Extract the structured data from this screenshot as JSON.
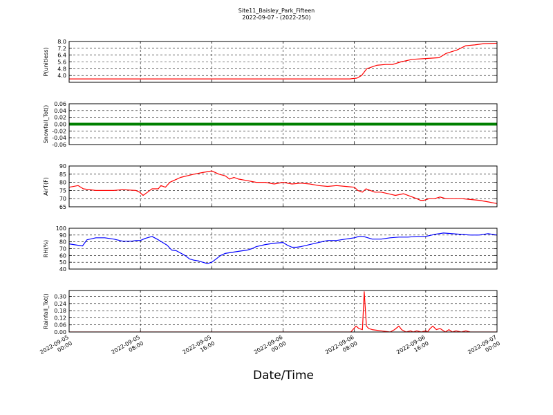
{
  "title_line1": "Site11_Baisley_Park_Fifteen",
  "title_line2": "2022-09-07 - (2022-250)",
  "xlabel": "Date/Time",
  "x_ticks": [
    {
      "t": 0,
      "line1": "2022-09-05",
      "line2": "00:00"
    },
    {
      "t": 8,
      "line1": "2022-09-05",
      "line2": "08:00"
    },
    {
      "t": 16,
      "line1": "2022-09-05",
      "line2": "16:00"
    },
    {
      "t": 24,
      "line1": "2022-09-06",
      "line2": "00:00"
    },
    {
      "t": 32,
      "line1": "2022-09-06",
      "line2": "08:00"
    },
    {
      "t": 40,
      "line1": "2022-09-06",
      "line2": "16:00"
    },
    {
      "t": 48,
      "line1": "2022-09-07",
      "line2": "00:00"
    }
  ],
  "chart_data": [
    {
      "type": "line",
      "ylabel": "P(unitless)",
      "color": "#ff0000",
      "ylim": [
        3.2,
        8.0
      ],
      "yticks": [
        "4.0",
        "4.8",
        "5.6",
        "6.4",
        "7.2",
        "8.0"
      ],
      "x_hours": [
        0,
        8,
        16,
        24,
        31.5,
        32.3,
        32.8,
        33.4,
        34.5,
        35.5,
        36.3,
        37.2,
        38.5,
        40,
        41.5,
        42.3,
        43.5,
        44.5,
        45.5,
        46.5,
        48
      ],
      "values": [
        3.6,
        3.6,
        3.6,
        3.6,
        3.6,
        3.7,
        4.0,
        4.8,
        5.2,
        5.3,
        5.3,
        5.6,
        5.9,
        6.0,
        6.1,
        6.6,
        7.0,
        7.5,
        7.6,
        7.75,
        7.8
      ]
    },
    {
      "type": "line",
      "ylabel": "Snowfall_Tot()",
      "color": "#008000",
      "ylim": [
        -0.06,
        0.06
      ],
      "yticks": [
        "-0.06",
        "-0.04",
        "-0.02",
        "0.00",
        "0.02",
        "0.04",
        "0.06"
      ],
      "x_hours": [
        0,
        48
      ],
      "values": [
        0.0,
        0.0
      ]
    },
    {
      "type": "line",
      "ylabel": "AirT(F)",
      "color": "#ff0000",
      "ylim": [
        65,
        90
      ],
      "yticks": [
        "65",
        "70",
        "75",
        "80",
        "85",
        "90"
      ],
      "x_hours": [
        0,
        1,
        1.6,
        3,
        5,
        6,
        7.5,
        7.9,
        8.3,
        8.8,
        9.3,
        10,
        10.3,
        10.8,
        11.3,
        12.5,
        14,
        15,
        16,
        16.8,
        17.5,
        18,
        18.5,
        19,
        20,
        21,
        22,
        23,
        24,
        25,
        26,
        27,
        28,
        29,
        30,
        31,
        32,
        32.4,
        32.9,
        33.3,
        33.8,
        34.3,
        35,
        35.8,
        36.6,
        37.5,
        38.5,
        39,
        39.4,
        39.8,
        40.4,
        41,
        41.6,
        42.3,
        43,
        44,
        45,
        46,
        47,
        48
      ],
      "values": [
        77,
        78,
        76,
        75,
        75,
        75.5,
        75,
        74,
        72,
        74,
        76,
        76,
        78,
        77,
        80,
        83,
        85,
        86,
        87,
        85,
        84,
        82,
        83,
        82,
        81,
        80,
        80,
        79,
        80,
        79,
        79.5,
        79,
        78,
        77.5,
        78,
        77.5,
        77,
        75,
        74,
        76,
        75,
        74,
        74,
        73,
        72,
        73,
        71,
        70,
        69,
        69,
        70,
        70,
        71,
        70,
        70,
        70,
        69.5,
        69,
        68,
        67
      ]
    },
    {
      "type": "line",
      "ylabel": "RH(%)",
      "color": "#0000ff",
      "ylim": [
        40,
        100
      ],
      "yticks": [
        "40",
        "50",
        "60",
        "70",
        "80",
        "90",
        "100"
      ],
      "x_hours": [
        0,
        1,
        1.5,
        2,
        3,
        4,
        5,
        6,
        7,
        7.5,
        8,
        8.5,
        9.3,
        10,
        10.5,
        11,
        11.5,
        12,
        13,
        13.5,
        14,
        14.5,
        15,
        15.5,
        16,
        16.5,
        17,
        17.5,
        18,
        19,
        20,
        20.5,
        21,
        22,
        23,
        24,
        24.5,
        25,
        25.5,
        26,
        27,
        28,
        29,
        30,
        31,
        32,
        32.5,
        33,
        34,
        35,
        36,
        37,
        38,
        39,
        40,
        41,
        42,
        43,
        44,
        45,
        46,
        47,
        48
      ],
      "values": [
        77,
        75,
        74,
        83,
        86,
        86,
        84,
        81,
        81,
        82,
        82,
        85,
        88,
        83,
        79,
        75,
        68,
        67,
        60,
        55,
        53,
        52,
        50,
        48,
        50,
        55,
        60,
        63,
        64,
        66,
        68,
        70,
        73,
        76,
        78,
        79,
        75,
        72,
        72,
        73,
        76,
        79,
        82,
        82,
        84,
        86,
        88,
        88,
        84,
        84,
        86,
        87,
        87,
        88,
        88,
        91,
        93,
        92,
        91,
        90,
        90,
        92,
        90
      ]
    },
    {
      "type": "line",
      "ylabel": "Rainfall_Tot()",
      "color": "#ff0000",
      "ylim": [
        0,
        0.35
      ],
      "yticks": [
        "0.00",
        "0.06",
        "0.12",
        "0.18",
        "0.24",
        "0.30"
      ],
      "x_hours": [
        0,
        31.6,
        32.2,
        32.5,
        32.9,
        33.1,
        33.35,
        33.6,
        34,
        35,
        36,
        36.5,
        37,
        37.3,
        37.8,
        38.3,
        38.6,
        39,
        39.5,
        40,
        40.2,
        40.5,
        40.8,
        41.2,
        41.6,
        42.2,
        42.6,
        43,
        43.4,
        44,
        44.5,
        45,
        48
      ],
      "values": [
        0,
        0,
        0.05,
        0.03,
        0.02,
        0.34,
        0.05,
        0.03,
        0.02,
        0.01,
        0.0,
        0.02,
        0.05,
        0.02,
        0.0,
        0.01,
        0.0,
        0.01,
        0.0,
        0.01,
        0.0,
        0.03,
        0.05,
        0.02,
        0.03,
        0.0,
        0.02,
        0.0,
        0.01,
        0.0,
        0.01,
        0.0,
        0
      ]
    }
  ]
}
